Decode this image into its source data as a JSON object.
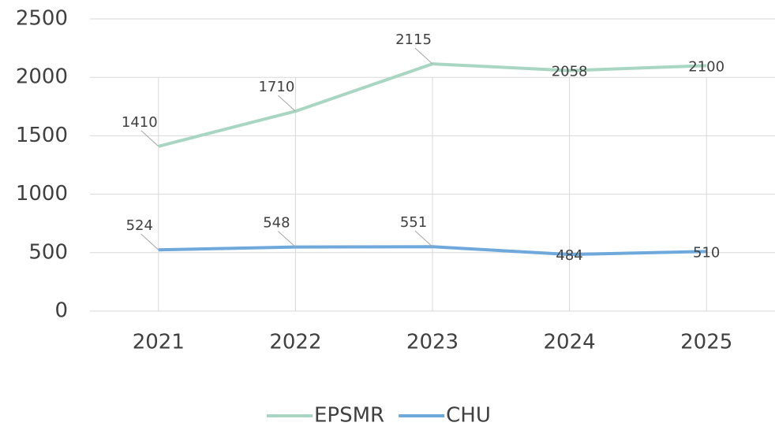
{
  "chart_data": {
    "type": "line",
    "categories": [
      "2021",
      "2022",
      "2023",
      "2024",
      "2025"
    ],
    "series": [
      {
        "name": "EPSMR",
        "color": "#a9d6c3",
        "values": [
          1410,
          1710,
          2115,
          2058,
          2100
        ]
      },
      {
        "name": "CHU",
        "color": "#6fa9dc",
        "values": [
          524,
          548,
          551,
          484,
          510
        ]
      }
    ],
    "ylim": [
      0,
      2500
    ],
    "yticks": [
      0,
      500,
      1000,
      1500,
      2000,
      2500
    ],
    "grid": true,
    "legend": "bottom"
  }
}
